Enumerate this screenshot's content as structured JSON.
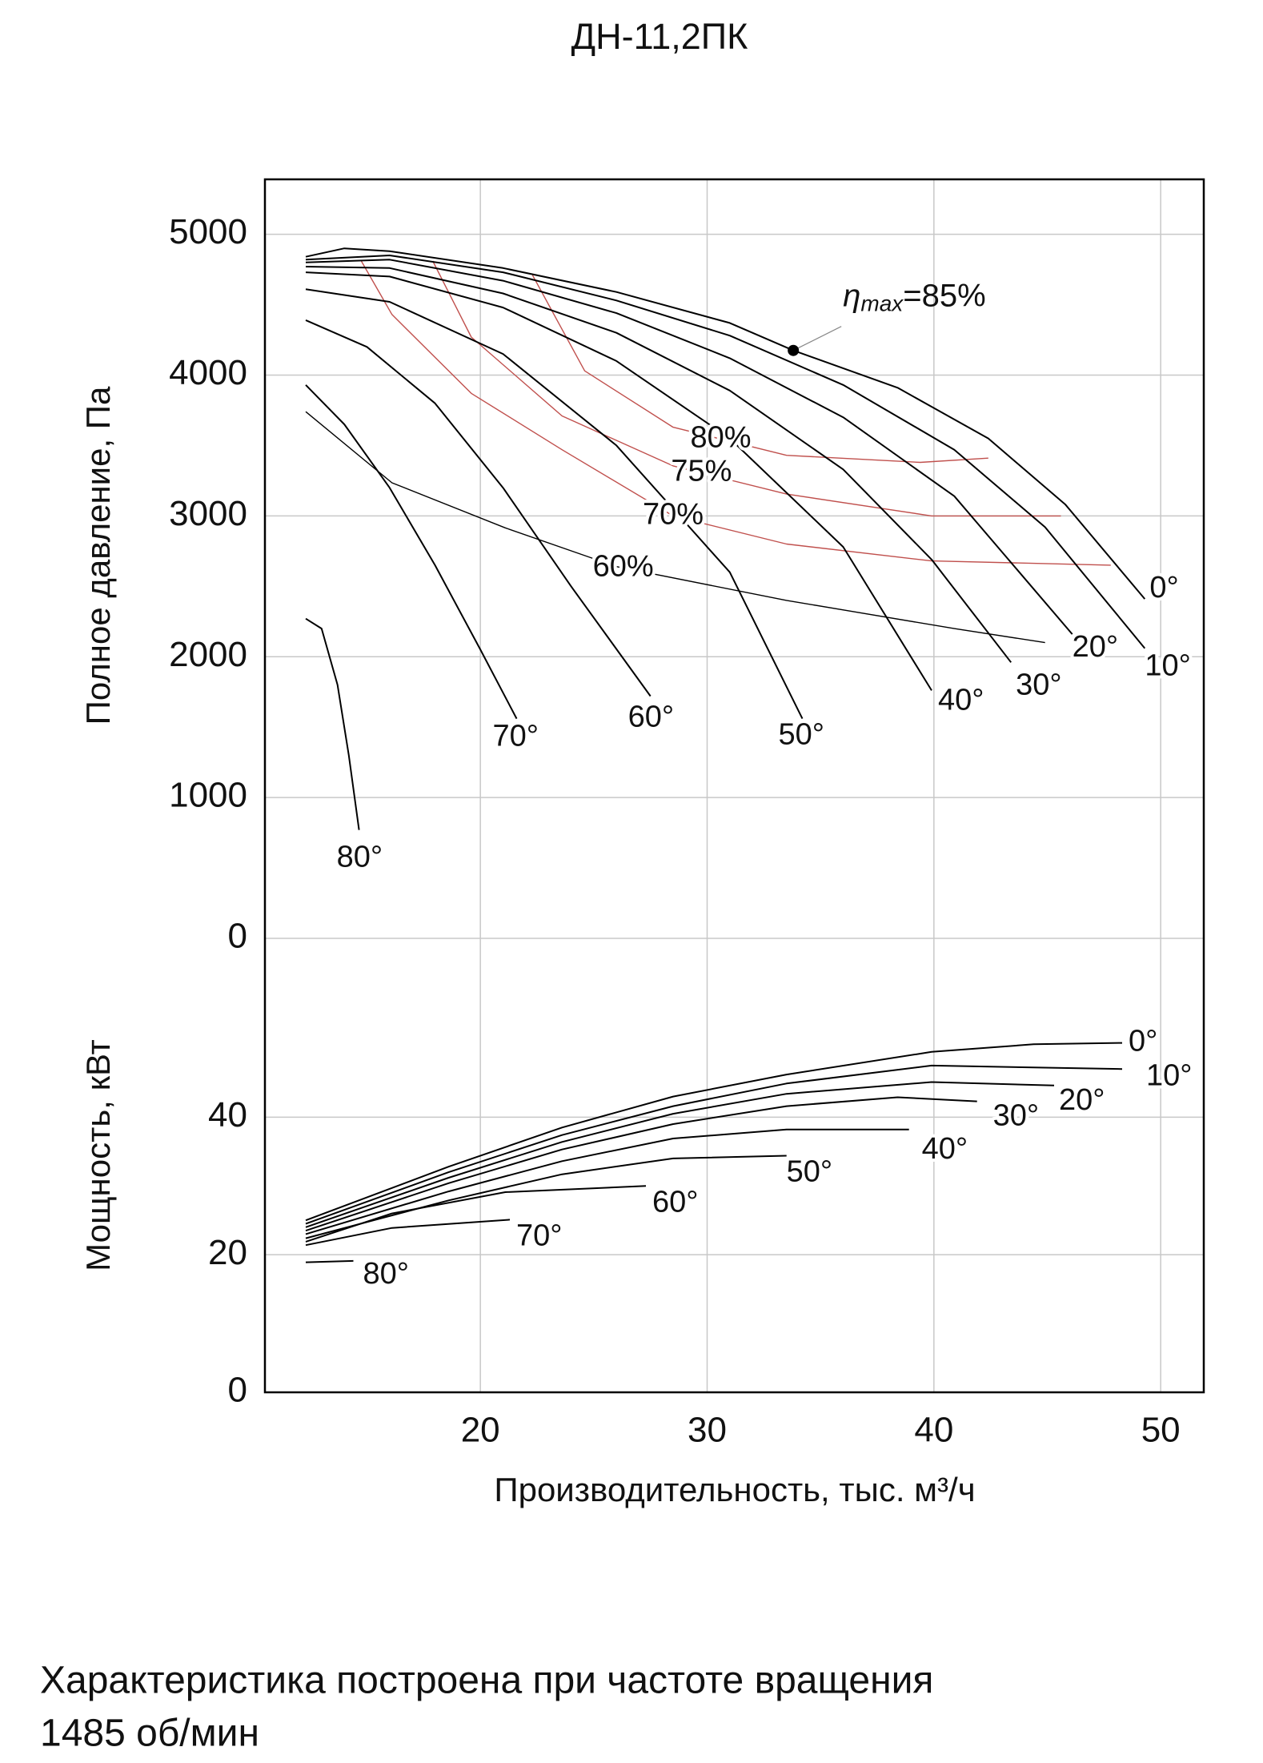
{
  "chart_data": [
    {
      "type": "line",
      "title": "ДН-11,2ПК",
      "ylabel": "Полное давление, Па",
      "xlim": [
        10.5,
        51.9
      ],
      "ylim": [
        0,
        5390
      ],
      "yticks": [
        0,
        1000,
        2000,
        3000,
        4000,
        5000
      ],
      "grid": true,
      "series": [
        {
          "name": "0°",
          "color": "#000000",
          "x": [
            12.3,
            14,
            16,
            21,
            26,
            31,
            33.8,
            38.4,
            42.4,
            45.8,
            49.3
          ],
          "values": [
            4840,
            4900,
            4880,
            4760,
            4590,
            4370,
            4175,
            3910,
            3550,
            3080,
            2410
          ]
        },
        {
          "name": "10°",
          "color": "#000000",
          "x": [
            12.3,
            16,
            21,
            26,
            31,
            36,
            40.9,
            44.9,
            49.3
          ],
          "values": [
            4820,
            4850,
            4730,
            4530,
            4280,
            3930,
            3470,
            2920,
            2060
          ]
        },
        {
          "name": "20°",
          "color": "#000000",
          "x": [
            12.3,
            16,
            21,
            26,
            31,
            36,
            40.9,
            46.1
          ],
          "values": [
            4800,
            4820,
            4670,
            4440,
            4120,
            3700,
            3140,
            2160
          ]
        },
        {
          "name": "30°",
          "color": "#000000",
          "x": [
            12.3,
            16,
            21,
            26,
            31,
            36,
            39.9,
            43.4
          ],
          "values": [
            4770,
            4760,
            4580,
            4300,
            3890,
            3330,
            2690,
            1960
          ]
        },
        {
          "name": "40°",
          "color": "#000000",
          "x": [
            12.3,
            16,
            21,
            26,
            31,
            36,
            39.9
          ],
          "values": [
            4730,
            4700,
            4480,
            4100,
            3550,
            2780,
            1760
          ]
        },
        {
          "name": "50°",
          "color": "#000000",
          "x": [
            12.3,
            16,
            21,
            26,
            31,
            34.2
          ],
          "values": [
            4610,
            4520,
            4150,
            3500,
            2600,
            1560
          ]
        },
        {
          "name": "60°",
          "color": "#000000",
          "x": [
            12.3,
            15,
            18,
            21,
            24,
            27.5
          ],
          "values": [
            4390,
            4200,
            3800,
            3200,
            2500,
            1720
          ]
        },
        {
          "name": "70°",
          "color": "#000000",
          "x": [
            12.3,
            14,
            16,
            18,
            20,
            21.6
          ],
          "values": [
            3930,
            3650,
            3200,
            2650,
            2050,
            1560
          ]
        },
        {
          "name": "80°",
          "color": "#000000",
          "x": [
            12.3,
            13,
            13.7,
            14.2,
            14.65
          ],
          "values": [
            2270,
            2200,
            1800,
            1300,
            770
          ]
        }
      ],
      "efficiency_curves": [
        {
          "name": "80%",
          "color": "#c0504d",
          "x": [
            22.3,
            24.6,
            28.5,
            33.5,
            39.4,
            42.4
          ],
          "values": [
            4710,
            4030,
            3630,
            3430,
            3380,
            3410
          ]
        },
        {
          "name": "75%",
          "color": "#c0504d",
          "x": [
            17.9,
            19.6,
            23.6,
            28.5,
            33.5,
            39.9,
            45.6
          ],
          "values": [
            4810,
            4270,
            3710,
            3355,
            3155,
            3000,
            3000
          ]
        },
        {
          "name": "70%",
          "color": "#c0504d",
          "x": [
            14.75,
            16.1,
            19.6,
            23.6,
            28.5,
            33.5,
            39.9,
            47.8
          ],
          "values": [
            4810,
            4430,
            3870,
            3470,
            3000,
            2800,
            2680,
            2650
          ]
        },
        {
          "name": "60%",
          "color": "#000000",
          "x": [
            12.3,
            16.1,
            21.1,
            26,
            33.5,
            40.9,
            44.9
          ],
          "values": [
            3740,
            3235,
            2915,
            2640,
            2400,
            2200,
            2100
          ]
        }
      ],
      "annotation": {
        "x": 33.8,
        "y": 4175,
        "symbol": "η",
        "subscript": "max",
        "text": "=85%"
      }
    },
    {
      "type": "line",
      "ylabel": "Мощность, кВт",
      "xlabel": "Производительность, тыс. м³/ч",
      "xlim": [
        10.5,
        51.9
      ],
      "xticks": [
        20,
        30,
        40,
        50
      ],
      "ylim": [
        0,
        66
      ],
      "yticks": [
        0,
        20,
        40
      ],
      "grid": true,
      "series": [
        {
          "name": "0°",
          "color": "#000000",
          "x": [
            12.3,
            18.6,
            23.6,
            28.5,
            33.5,
            39.9,
            44.4,
            48.3
          ],
          "values": [
            25.0,
            32.8,
            38.5,
            43.0,
            46.2,
            49.5,
            50.6,
            50.8
          ]
        },
        {
          "name": "10°",
          "color": "#000000",
          "x": [
            12.3,
            18.6,
            23.6,
            28.5,
            33.5,
            39.9,
            48.3
          ],
          "values": [
            24.5,
            32.0,
            37.4,
            41.6,
            44.9,
            47.5,
            47.0
          ]
        },
        {
          "name": "20°",
          "color": "#000000",
          "x": [
            12.3,
            18.6,
            23.6,
            28.5,
            33.5,
            39.9,
            45.3
          ],
          "values": [
            24.0,
            31.2,
            36.4,
            40.5,
            43.4,
            45.1,
            44.6
          ]
        },
        {
          "name": "30°",
          "color": "#000000",
          "x": [
            12.3,
            18.6,
            23.6,
            28.5,
            33.5,
            38.4,
            41.9
          ],
          "values": [
            23.5,
            30.4,
            35.3,
            39.0,
            41.6,
            42.9,
            42.3
          ]
        },
        {
          "name": "40°",
          "color": "#000000",
          "x": [
            12.3,
            18.6,
            23.6,
            28.5,
            33.5,
            38.9
          ],
          "values": [
            23.0,
            29.2,
            33.6,
            36.9,
            38.2,
            38.2
          ]
        },
        {
          "name": "50°",
          "color": "#000000",
          "x": [
            12.3,
            18.6,
            23.6,
            28.5,
            33.5
          ],
          "values": [
            22.4,
            27.9,
            31.7,
            34.0,
            34.4
          ]
        },
        {
          "name": "60°",
          "color": "#000000",
          "x": [
            12.3,
            16.1,
            21.1,
            27.3
          ],
          "values": [
            21.9,
            26.0,
            29.1,
            30.0
          ]
        },
        {
          "name": "70°",
          "color": "#000000",
          "x": [
            12.3,
            16.1,
            21.3
          ],
          "values": [
            21.4,
            23.9,
            25.1
          ]
        },
        {
          "name": "80°",
          "color": "#000000",
          "x": [
            12.3,
            14.4
          ],
          "values": [
            18.9,
            19.1
          ]
        }
      ]
    }
  ],
  "footnote": [
    "Характеристика построена при частоте вращения",
    "1485 об/мин"
  ]
}
